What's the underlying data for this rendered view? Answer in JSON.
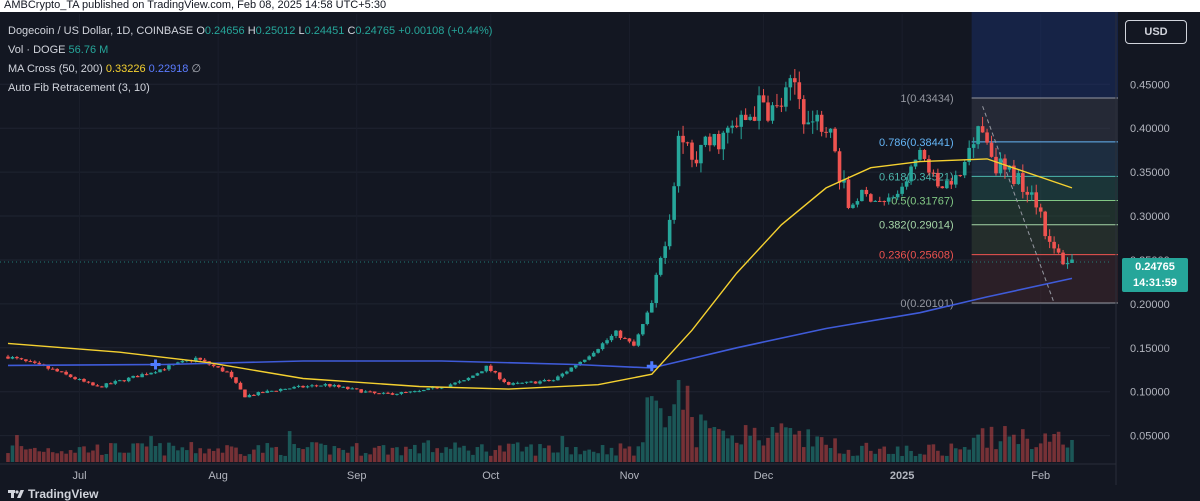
{
  "header": {
    "publish_line": "AMBCrypto_TA published on TradingView.com, Feb 08, 2025 14:58 UTC+5:30"
  },
  "legend": {
    "symbol": "Dogecoin / US Dollar, 1D, COINBASE",
    "o_label": "O",
    "o_value": "0.24656",
    "h_label": "H",
    "h_value": "0.25012",
    "l_label": "L",
    "l_value": "0.24451",
    "c_label": "C",
    "c_value": "0.24765",
    "change": "+0.00108 (+0.44%)",
    "vol_label": "Vol · DOGE",
    "vol_value": "56.76 M",
    "ma_label": "MA Cross (50, 200)",
    "ma50_value": "0.33226",
    "ma200_value": "0.22918",
    "ma_extra": "∅",
    "fib_label": "Auto Fib Retracement (3, 10)"
  },
  "currency_button": "USD",
  "last_price": {
    "value": "0.24765",
    "countdown": "14:31:59"
  },
  "footer": {
    "brand": "TradingView"
  },
  "colors": {
    "background": "#131722",
    "up": "#26a69a",
    "down": "#ef5350",
    "ma50": "#f5d130",
    "ma200": "#3f5bd9",
    "text": "#d1d4dc"
  },
  "chart_data": {
    "type": "candlestick",
    "x_ticks": [
      "Jul",
      "Aug",
      "Sep",
      "Oct",
      "Nov",
      "Dec",
      "2025",
      "Feb"
    ],
    "y_ticks": [
      "0.45000",
      "0.40000",
      "0.35000",
      "0.30000",
      "0.25000",
      "0.20000",
      "0.15000",
      "0.10000",
      "0.05000"
    ],
    "y_tick_values": [
      0.45,
      0.4,
      0.35,
      0.3,
      0.25,
      0.2,
      0.15,
      0.1,
      0.05
    ],
    "ylim": [
      0.02,
      0.53
    ],
    "x_range": [
      "2024-06-15",
      "2025-02-08"
    ],
    "close_path": [
      [
        "2024-06-15",
        0.14
      ],
      [
        "2024-06-25",
        0.125
      ],
      [
        "2024-07-05",
        0.105
      ],
      [
        "2024-07-12",
        0.115
      ],
      [
        "2024-07-20",
        0.127
      ],
      [
        "2024-07-27",
        0.138
      ],
      [
        "2024-08-03",
        0.122
      ],
      [
        "2024-08-07",
        0.095
      ],
      [
        "2024-08-15",
        0.103
      ],
      [
        "2024-08-25",
        0.108
      ],
      [
        "2024-09-06",
        0.097
      ],
      [
        "2024-09-15",
        0.1
      ],
      [
        "2024-09-25",
        0.112
      ],
      [
        "2024-09-30",
        0.128
      ],
      [
        "2024-10-05",
        0.108
      ],
      [
        "2024-10-15",
        0.113
      ],
      [
        "2024-10-22",
        0.138
      ],
      [
        "2024-10-29",
        0.167
      ],
      [
        "2024-11-02",
        0.152
      ],
      [
        "2024-11-06",
        0.2
      ],
      [
        "2024-11-10",
        0.3
      ],
      [
        "2024-11-12",
        0.39
      ],
      [
        "2024-11-16",
        0.37
      ],
      [
        "2024-11-20",
        0.385
      ],
      [
        "2024-11-25",
        0.4
      ],
      [
        "2024-11-30",
        0.425
      ],
      [
        "2024-12-04",
        0.42
      ],
      [
        "2024-12-08",
        0.45
      ],
      [
        "2024-12-11",
        0.405
      ],
      [
        "2024-12-15",
        0.41
      ],
      [
        "2024-12-20",
        0.31
      ],
      [
        "2024-12-23",
        0.325
      ],
      [
        "2024-12-28",
        0.315
      ],
      [
        "2025-01-01",
        0.33
      ],
      [
        "2025-01-05",
        0.375
      ],
      [
        "2025-01-09",
        0.335
      ],
      [
        "2025-01-14",
        0.345
      ],
      [
        "2025-01-18",
        0.41
      ],
      [
        "2025-01-22",
        0.36
      ],
      [
        "2025-01-26",
        0.345
      ],
      [
        "2025-01-30",
        0.33
      ],
      [
        "2025-02-01",
        0.305
      ],
      [
        "2025-02-03",
        0.265
      ],
      [
        "2025-02-06",
        0.25
      ],
      [
        "2025-02-08",
        0.2477
      ]
    ],
    "ma50_path": [
      [
        "2024-06-15",
        0.155
      ],
      [
        "2024-07-10",
        0.145
      ],
      [
        "2024-07-30",
        0.133
      ],
      [
        "2024-08-20",
        0.115
      ],
      [
        "2024-09-15",
        0.106
      ],
      [
        "2024-10-05",
        0.103
      ],
      [
        "2024-10-25",
        0.108
      ],
      [
        "2024-11-06",
        0.12
      ],
      [
        "2024-11-15",
        0.17
      ],
      [
        "2024-11-25",
        0.235
      ],
      [
        "2024-12-05",
        0.29
      ],
      [
        "2024-12-15",
        0.332
      ],
      [
        "2024-12-25",
        0.355
      ],
      [
        "2025-01-05",
        0.362
      ],
      [
        "2025-01-20",
        0.365
      ],
      [
        "2025-02-08",
        0.332
      ]
    ],
    "ma200_path": [
      [
        "2024-06-15",
        0.13
      ],
      [
        "2024-07-20",
        0.131
      ],
      [
        "2024-08-20",
        0.135
      ],
      [
        "2024-09-20",
        0.135
      ],
      [
        "2024-10-20",
        0.131
      ],
      [
        "2024-11-06",
        0.127
      ],
      [
        "2024-11-25",
        0.15
      ],
      [
        "2024-12-15",
        0.172
      ],
      [
        "2025-01-05",
        0.19
      ],
      [
        "2025-01-20",
        0.208
      ],
      [
        "2025-02-08",
        0.229
      ]
    ],
    "ma_cross_points": [
      [
        "2024-07-18",
        0.131
      ],
      [
        "2024-11-06",
        0.129
      ]
    ],
    "volume_scale_note": "",
    "fib_levels": [
      {
        "label": "1(0.43434)",
        "ratio": 1,
        "value": 0.43434,
        "color": "#9598a1"
      },
      {
        "label": "0.786(0.38441)",
        "ratio": 0.786,
        "value": 0.38441,
        "color": "#64b5f6"
      },
      {
        "label": "0.618(0.34521)",
        "ratio": 0.618,
        "value": 0.34521,
        "color": "#4db6ac"
      },
      {
        "label": "0.5(0.31767)",
        "ratio": 0.5,
        "value": 0.31767,
        "color": "#81c784"
      },
      {
        "label": "0.382(0.29014)",
        "ratio": 0.382,
        "value": 0.29014,
        "color": "#a5d6a7"
      },
      {
        "label": "0.236(0.25608)",
        "ratio": 0.236,
        "value": 0.25608,
        "color": "#ef5350"
      },
      {
        "label": "0(0.20101)",
        "ratio": 0,
        "value": 0.20101,
        "color": "#9598a1"
      }
    ],
    "fib_range": [
      "2025-01-17",
      "2025-02-08"
    ]
  }
}
